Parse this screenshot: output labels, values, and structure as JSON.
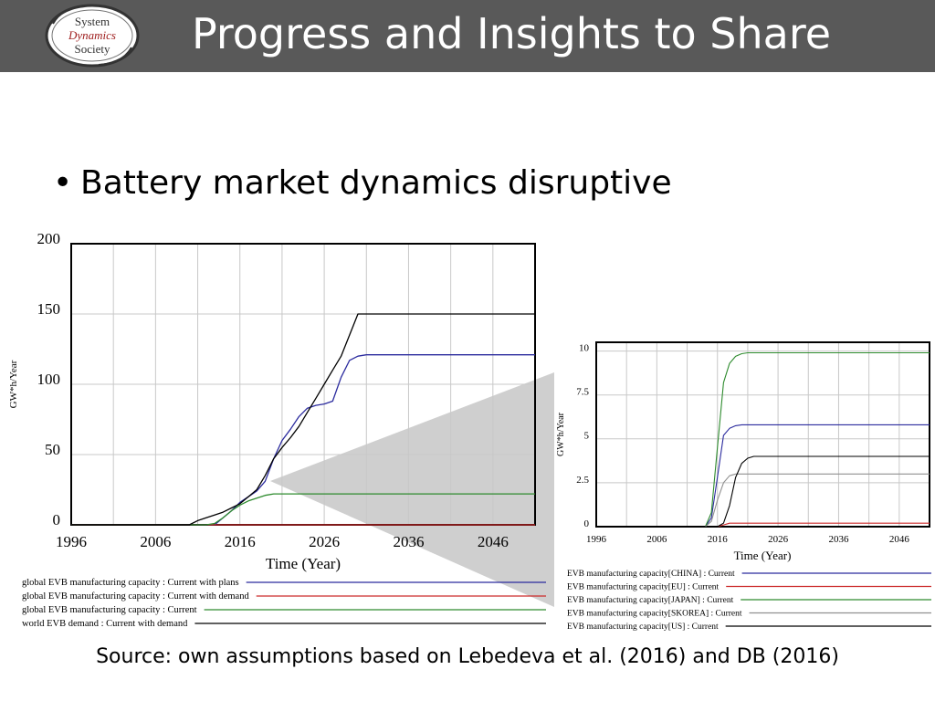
{
  "header": {
    "title": "Progress and Insights to Share",
    "logo_lines": [
      "System",
      "Dynamics",
      "Society"
    ]
  },
  "bullet": "Battery market dynamics disruptive",
  "source": "Source: own assumptions based on Lebedeva et al. (2016) and DB (2016)",
  "colors": {
    "header_bg": "#595959",
    "blue": "#2b2b9e",
    "red": "#cc2a2a",
    "green": "#2e8b2e",
    "gray": "#909090",
    "black": "#000000",
    "zoom_wedge": "#cfcfcf"
  },
  "chart_data": [
    {
      "type": "line",
      "xlabel": "Time (Year)",
      "ylabel": "GW*h/Year",
      "xlim": [
        1996,
        2051
      ],
      "ylim": [
        0,
        200
      ],
      "x_ticks": [
        1996,
        2006,
        2016,
        2026,
        2036,
        2046
      ],
      "y_ticks": [
        0,
        50,
        100,
        150,
        200
      ],
      "grid": true,
      "legend_position": "bottom",
      "series": [
        {
          "name": "global EVB manufacturing capacity : Current with plans",
          "color": "blue",
          "x": [
            1996,
            2011,
            2012,
            2013,
            2014,
            2015,
            2016,
            2017,
            2018,
            2019,
            2020,
            2021,
            2022,
            2023,
            2024,
            2025,
            2026,
            2027,
            2028,
            2029,
            2030,
            2031,
            2032,
            2033,
            2051
          ],
          "y": [
            0,
            0,
            0,
            0,
            5,
            10,
            16,
            20,
            24,
            31,
            47,
            60,
            68,
            77,
            83,
            85,
            86,
            88,
            105,
            117,
            120,
            121,
            121,
            121,
            121
          ]
        },
        {
          "name": "global EVB manufacturing capacity : Current with demand",
          "color": "red",
          "x": [
            1996,
            2051
          ],
          "y": [
            0,
            0
          ]
        },
        {
          "name": "global EVB manufacturing capacity : Current",
          "color": "green",
          "x": [
            1996,
            2012,
            2013,
            2014,
            2015,
            2016,
            2017,
            2018,
            2019,
            2020,
            2051
          ],
          "y": [
            0,
            0,
            1,
            5,
            10,
            14,
            17,
            19,
            21,
            22,
            22
          ]
        },
        {
          "name": "world EVB demand : Current with demand",
          "color": "black",
          "x": [
            1996,
            2010,
            2011,
            2012,
            2013,
            2014,
            2015,
            2016,
            2017,
            2018,
            2019,
            2020,
            2021,
            2022,
            2023,
            2024,
            2025,
            2026,
            2027,
            2028,
            2029,
            2030,
            2031,
            2051
          ],
          "y": [
            0,
            0,
            3,
            5,
            7,
            9,
            12,
            15,
            20,
            25,
            35,
            47,
            55,
            62,
            70,
            80,
            90,
            100,
            110,
            120,
            135,
            150,
            150,
            150
          ]
        }
      ]
    },
    {
      "type": "line",
      "xlabel": "Time (Year)",
      "ylabel": "GW*h/Year",
      "xlim": [
        1996,
        2051
      ],
      "ylim": [
        0,
        10.5
      ],
      "x_ticks": [
        1996,
        2006,
        2016,
        2026,
        2036,
        2046
      ],
      "y_ticks": [
        0,
        2.5,
        5,
        7.5,
        10
      ],
      "y_tick_labels": [
        "0",
        "2.5",
        "5",
        "7.5",
        "10"
      ],
      "grid": true,
      "legend_position": "bottom",
      "series": [
        {
          "name": "EVB manufacturing capacity[CHINA] : Current",
          "color": "blue",
          "x": [
            1996,
            2014,
            2015,
            2016,
            2017,
            2018,
            2019,
            2020,
            2051
          ],
          "y": [
            0,
            0,
            0.5,
            2.8,
            5.2,
            5.6,
            5.75,
            5.8,
            5.8
          ]
        },
        {
          "name": "EVB manufacturing capacity[EU] : Current",
          "color": "red",
          "x": [
            1996,
            2016,
            2017,
            2018,
            2051
          ],
          "y": [
            0,
            0,
            0.1,
            0.2,
            0.2
          ]
        },
        {
          "name": "EVB manufacturing capacity[JAPAN] : Current",
          "color": "green",
          "x": [
            1996,
            2014,
            2015,
            2016,
            2017,
            2018,
            2019,
            2020,
            2021,
            2022,
            2051
          ],
          "y": [
            0,
            0,
            0.8,
            4.5,
            8.2,
            9.3,
            9.7,
            9.85,
            9.9,
            9.9,
            9.9
          ]
        },
        {
          "name": "EVB manufacturing capacity[SKOREA] : Current",
          "color": "gray",
          "x": [
            1996,
            2014,
            2015,
            2016,
            2017,
            2018,
            2019,
            2020,
            2051
          ],
          "y": [
            0,
            0,
            0.3,
            1.5,
            2.5,
            2.9,
            3.0,
            3.0,
            3.0
          ]
        },
        {
          "name": "EVB manufacturing capacity[US] : Current",
          "color": "black",
          "x": [
            1996,
            2016,
            2017,
            2018,
            2019,
            2020,
            2021,
            2022,
            2051
          ],
          "y": [
            0,
            0,
            0.2,
            1.2,
            2.8,
            3.6,
            3.9,
            4.0,
            4.0
          ]
        }
      ]
    }
  ]
}
